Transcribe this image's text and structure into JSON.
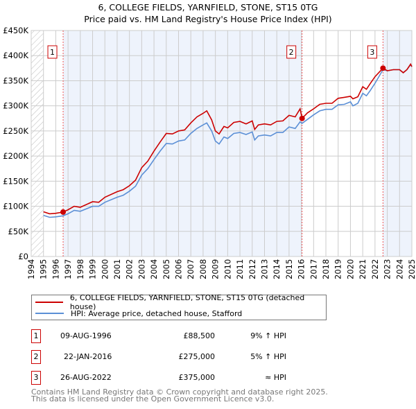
{
  "chart_data": {
    "type": "line",
    "title": "6, COLLEGE FIELDS, YARNFIELD, STONE, ST15 0TG",
    "subtitle": "Price paid vs. HM Land Registry's House Price Index (HPI)",
    "xlim": [
      1994,
      2025
    ],
    "ylim": [
      0,
      450000
    ],
    "x_ticks": [
      "1994",
      "1995",
      "1996",
      "1997",
      "1998",
      "1999",
      "2000",
      "2001",
      "2002",
      "2003",
      "2004",
      "2005",
      "2006",
      "2007",
      "2008",
      "2009",
      "2010",
      "2011",
      "2012",
      "2013",
      "2014",
      "2015",
      "2016",
      "2017",
      "2018",
      "2019",
      "2020",
      "2021",
      "2022",
      "2023",
      "2024",
      "2025"
    ],
    "y_ticks": [
      {
        "v": 0,
        "label": "£0"
      },
      {
        "v": 50000,
        "label": "£50K"
      },
      {
        "v": 100000,
        "label": "£100K"
      },
      {
        "v": 150000,
        "label": "£150K"
      },
      {
        "v": 200000,
        "label": "£200K"
      },
      {
        "v": 250000,
        "label": "£250K"
      },
      {
        "v": 300000,
        "label": "£300K"
      },
      {
        "v": 350000,
        "label": "£350K"
      },
      {
        "v": 400000,
        "label": "£400K"
      },
      {
        "v": 450000,
        "label": "£450K"
      }
    ],
    "grid": true,
    "series": [
      {
        "name": "6, COLLEGE FIELDS, YARNFIELD, STONE, ST15 0TG (detached house)",
        "color": "#cc0000",
        "x": [
          1995,
          1995.5,
          1996,
          1996.6,
          1997,
          1997.5,
          1998,
          1999,
          1999.5,
          2000,
          2001,
          2001.5,
          2002,
          2002.5,
          2003,
          2003.5,
          2004,
          2004.5,
          2005,
          2005.5,
          2006,
          2006.5,
          2007,
          2007.5,
          2008,
          2008.3,
          2008.7,
          2009,
          2009.3,
          2009.7,
          2010,
          2010.5,
          2011,
          2011.5,
          2012,
          2012.2,
          2012.5,
          2013,
          2013.5,
          2014,
          2014.5,
          2015,
          2015.5,
          2015.9,
          2016.06,
          2016.5,
          2017,
          2017.5,
          2018,
          2018.5,
          2019,
          2019.5,
          2020,
          2020.2,
          2020.6,
          2021,
          2021.3,
          2021.6,
          2022,
          2022.65,
          2023,
          2023.5,
          2024,
          2024.3,
          2024.6,
          2024.9,
          2025
        ],
        "y": [
          89000,
          85000,
          86000,
          88500,
          93000,
          100000,
          98000,
          109000,
          108000,
          118000,
          129000,
          133000,
          141000,
          152000,
          177000,
          190000,
          210000,
          228000,
          245000,
          244000,
          250000,
          252000,
          266000,
          278000,
          285000,
          290000,
          272000,
          250000,
          244000,
          259000,
          256000,
          267000,
          269000,
          264000,
          270000,
          253000,
          262000,
          264000,
          262000,
          269000,
          270000,
          281000,
          278000,
          294000,
          275000,
          286000,
          294000,
          303000,
          305000,
          305000,
          315000,
          317000,
          319000,
          314000,
          318000,
          338000,
          333000,
          344000,
          358000,
          375000,
          370000,
          372000,
          372000,
          366000,
          372000,
          383000,
          378000
        ]
      },
      {
        "name": "HPI: Average price, detached house, Stafford",
        "color": "#5b8fd6",
        "x": [
          1995,
          1995.5,
          1996,
          1996.6,
          1997,
          1997.5,
          1998,
          1999,
          1999.5,
          2000,
          2001,
          2001.5,
          2002,
          2002.5,
          2003,
          2003.5,
          2004,
          2004.5,
          2005,
          2005.5,
          2006,
          2006.5,
          2007,
          2007.5,
          2008,
          2008.3,
          2008.7,
          2009,
          2009.3,
          2009.7,
          2010,
          2010.5,
          2011,
          2011.5,
          2012,
          2012.2,
          2012.5,
          2013,
          2013.5,
          2014,
          2014.5,
          2015,
          2015.5,
          2015.9,
          2016.06,
          2016.5,
          2017,
          2017.5,
          2018,
          2018.5,
          2019,
          2019.5,
          2020,
          2020.2,
          2020.6,
          2021,
          2021.3,
          2021.6,
          2022,
          2022.65,
          2023,
          2023.5,
          2024,
          2024.3,
          2024.6,
          2024.9,
          2025
        ],
        "y": [
          82000,
          78000,
          79000,
          81000,
          85000,
          92000,
          90000,
          100000,
          100000,
          108000,
          118000,
          122000,
          130000,
          140000,
          162000,
          175000,
          193000,
          210000,
          225000,
          224000,
          230000,
          232000,
          245000,
          255000,
          262000,
          266000,
          250000,
          230000,
          224000,
          238000,
          235000,
          245000,
          247000,
          243000,
          248000,
          232000,
          240000,
          242000,
          240000,
          247000,
          247000,
          258000,
          255000,
          268000,
          265000,
          273000,
          282000,
          290000,
          293000,
          293000,
          302000,
          303000,
          308000,
          300000,
          305000,
          325000,
          320000,
          330000,
          345000,
          372000,
          370000,
          372000,
          372000,
          366000,
          372000,
          382000,
          378000
        ]
      }
    ],
    "sales": [
      {
        "id": "1",
        "x": 1996.6,
        "price": 88500,
        "date": "09-AUG-1996",
        "price_label": "£88,500",
        "hpi": "9% ↑ HPI"
      },
      {
        "id": "2",
        "x": 2016.06,
        "price": 275000,
        "date": "22-JAN-2016",
        "price_label": "£275,000",
        "hpi": "5% ↑ HPI"
      },
      {
        "id": "3",
        "x": 2022.65,
        "price": 375000,
        "date": "26-AUG-2022",
        "price_label": "£375,000",
        "hpi": "≈ HPI"
      }
    ],
    "legend_placement": "below"
  },
  "footer": [
    "Contains HM Land Registry data © Crown copyright and database right 2025.",
    "This data is licensed under the Open Government Licence v3.0."
  ]
}
